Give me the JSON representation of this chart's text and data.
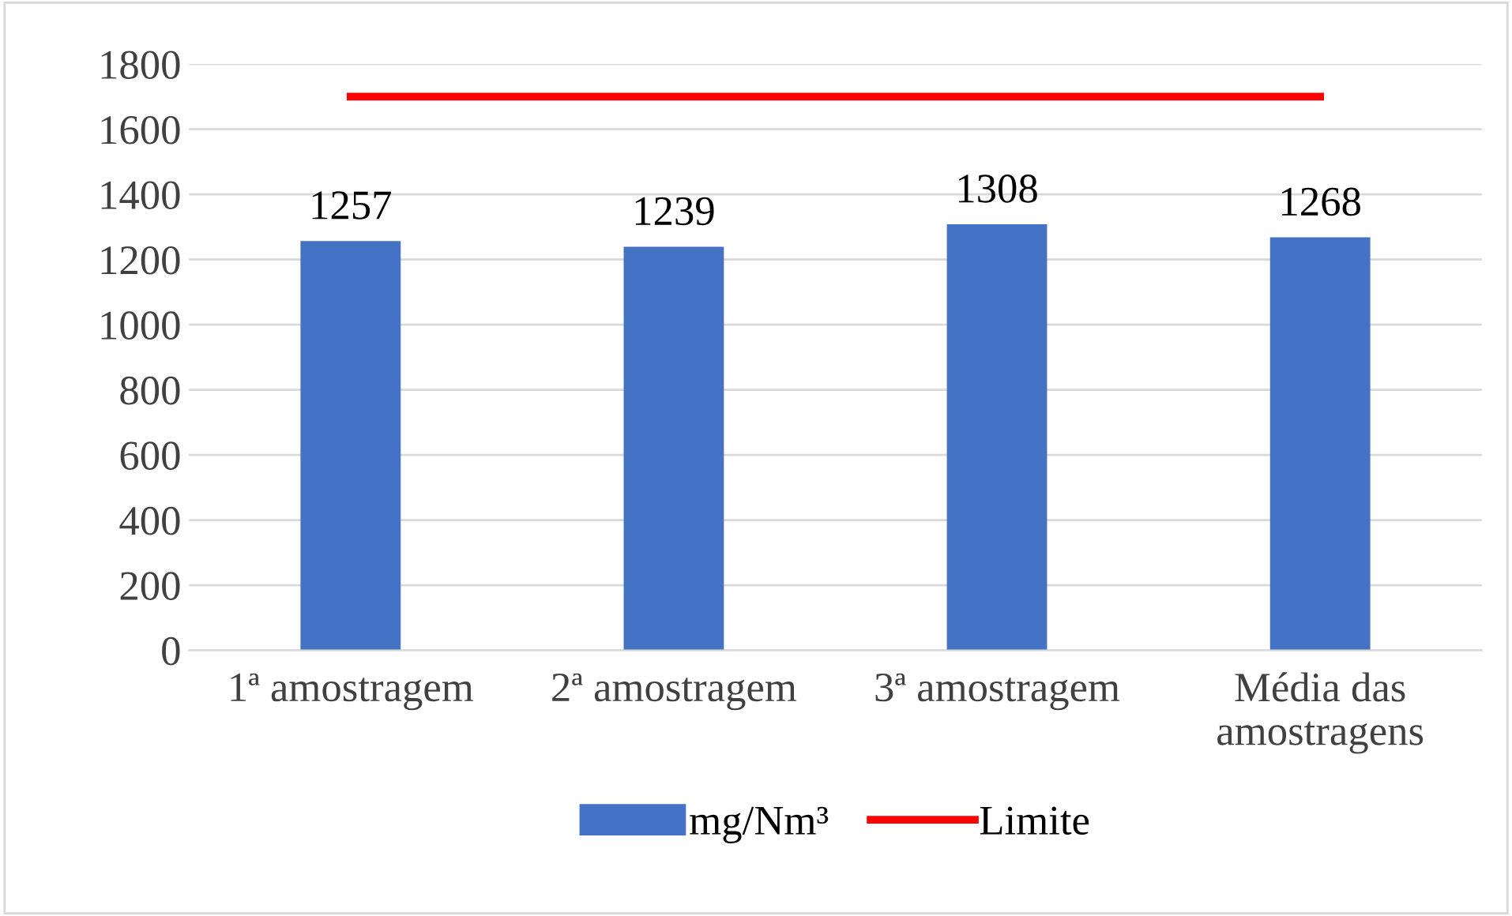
{
  "chart_data": {
    "type": "bar",
    "categories": [
      "1ª amostragem",
      "2ª amostragem",
      "3ª amostragem",
      "Média das\namostragens"
    ],
    "series": [
      {
        "name": "mg/Nm³",
        "color": "#4472c4",
        "values": [
          1257,
          1239,
          1308,
          1268
        ],
        "data_labels": true
      },
      {
        "name": "Limite",
        "type": "line",
        "color": "#ff0000",
        "values": [
          1700,
          1700,
          1700,
          1700
        ]
      }
    ],
    "ylim": [
      0,
      1800
    ],
    "yticks": [
      0,
      200,
      400,
      600,
      800,
      1000,
      1200,
      1400,
      1600,
      1800
    ],
    "grid": "y",
    "legend": "bottom",
    "marker": "none",
    "line_style": "solid"
  }
}
